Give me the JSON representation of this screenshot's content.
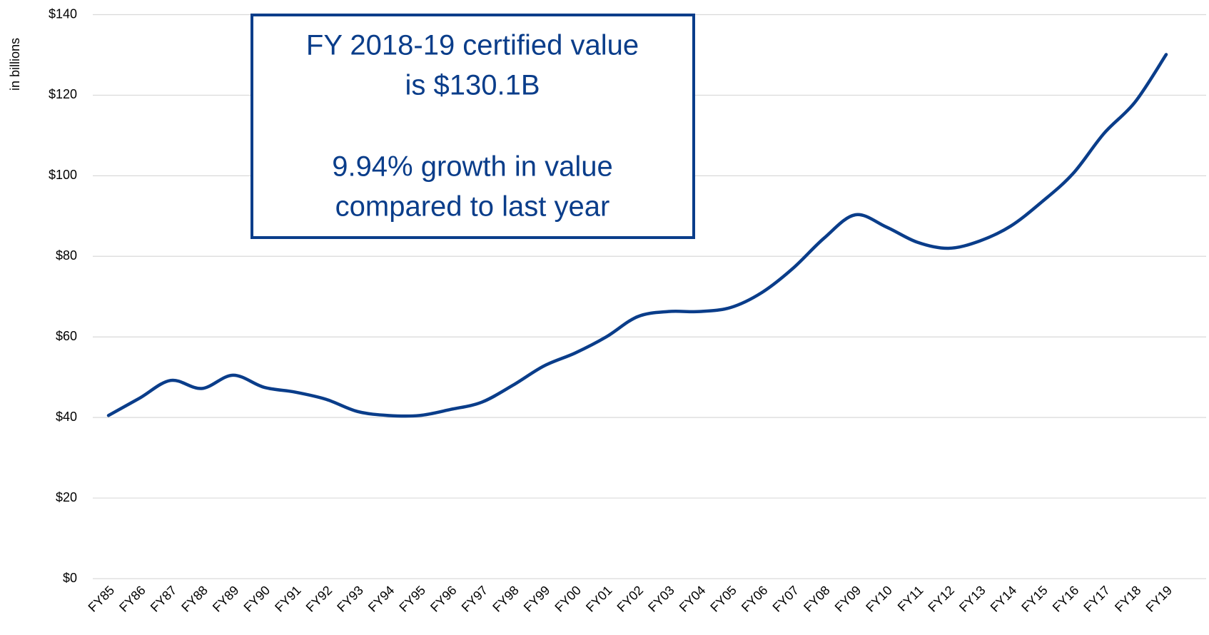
{
  "chart_data": {
    "type": "line",
    "y_label": "in billions",
    "annotation": [
      "FY 2018-19 certified value",
      "is $130.1B",
      "9.94% growth in value",
      "compared to last year"
    ],
    "categories": [
      "FY85",
      "FY86",
      "FY87",
      "FY88",
      "FY89",
      "FY90",
      "FY91",
      "FY92",
      "FY93",
      "FY94",
      "FY95",
      "FY96",
      "FY97",
      "FY98",
      "FY99",
      "FY00",
      "FY01",
      "FY02",
      "FY03",
      "FY04",
      "FY05",
      "FY06",
      "FY07",
      "FY08",
      "FY09",
      "FY10",
      "FY11",
      "FY12",
      "FY13",
      "FY14",
      "FY15",
      "FY16",
      "FY17",
      "FY18",
      "FY19"
    ],
    "series": [
      {
        "color": "#0a3d8a",
        "values": [
          40.5,
          44.8,
          49.2,
          47.2,
          50.5,
          47.5,
          46.3,
          44.5,
          41.5,
          40.5,
          40.5,
          42,
          43.8,
          48,
          52.8,
          56,
          60,
          65,
          66.3,
          66.3,
          67.3,
          71,
          77,
          84.5,
          90.3,
          87.3,
          83.5,
          82,
          83.8,
          87.5,
          93.5,
          100.5,
          110.5,
          118.3,
          130.1
        ]
      }
    ],
    "ylim": [
      0,
      140
    ],
    "yticks": [
      {
        "value": 0,
        "label": "$0"
      },
      {
        "value": 20,
        "label": "$20"
      },
      {
        "value": 40,
        "label": "$40"
      },
      {
        "value": 60,
        "label": "$60"
      },
      {
        "value": 80,
        "label": "$80"
      },
      {
        "value": 100,
        "label": "$100"
      },
      {
        "value": 120,
        "label": "$120"
      },
      {
        "value": 140,
        "label": "$140"
      }
    ],
    "grid": true
  }
}
